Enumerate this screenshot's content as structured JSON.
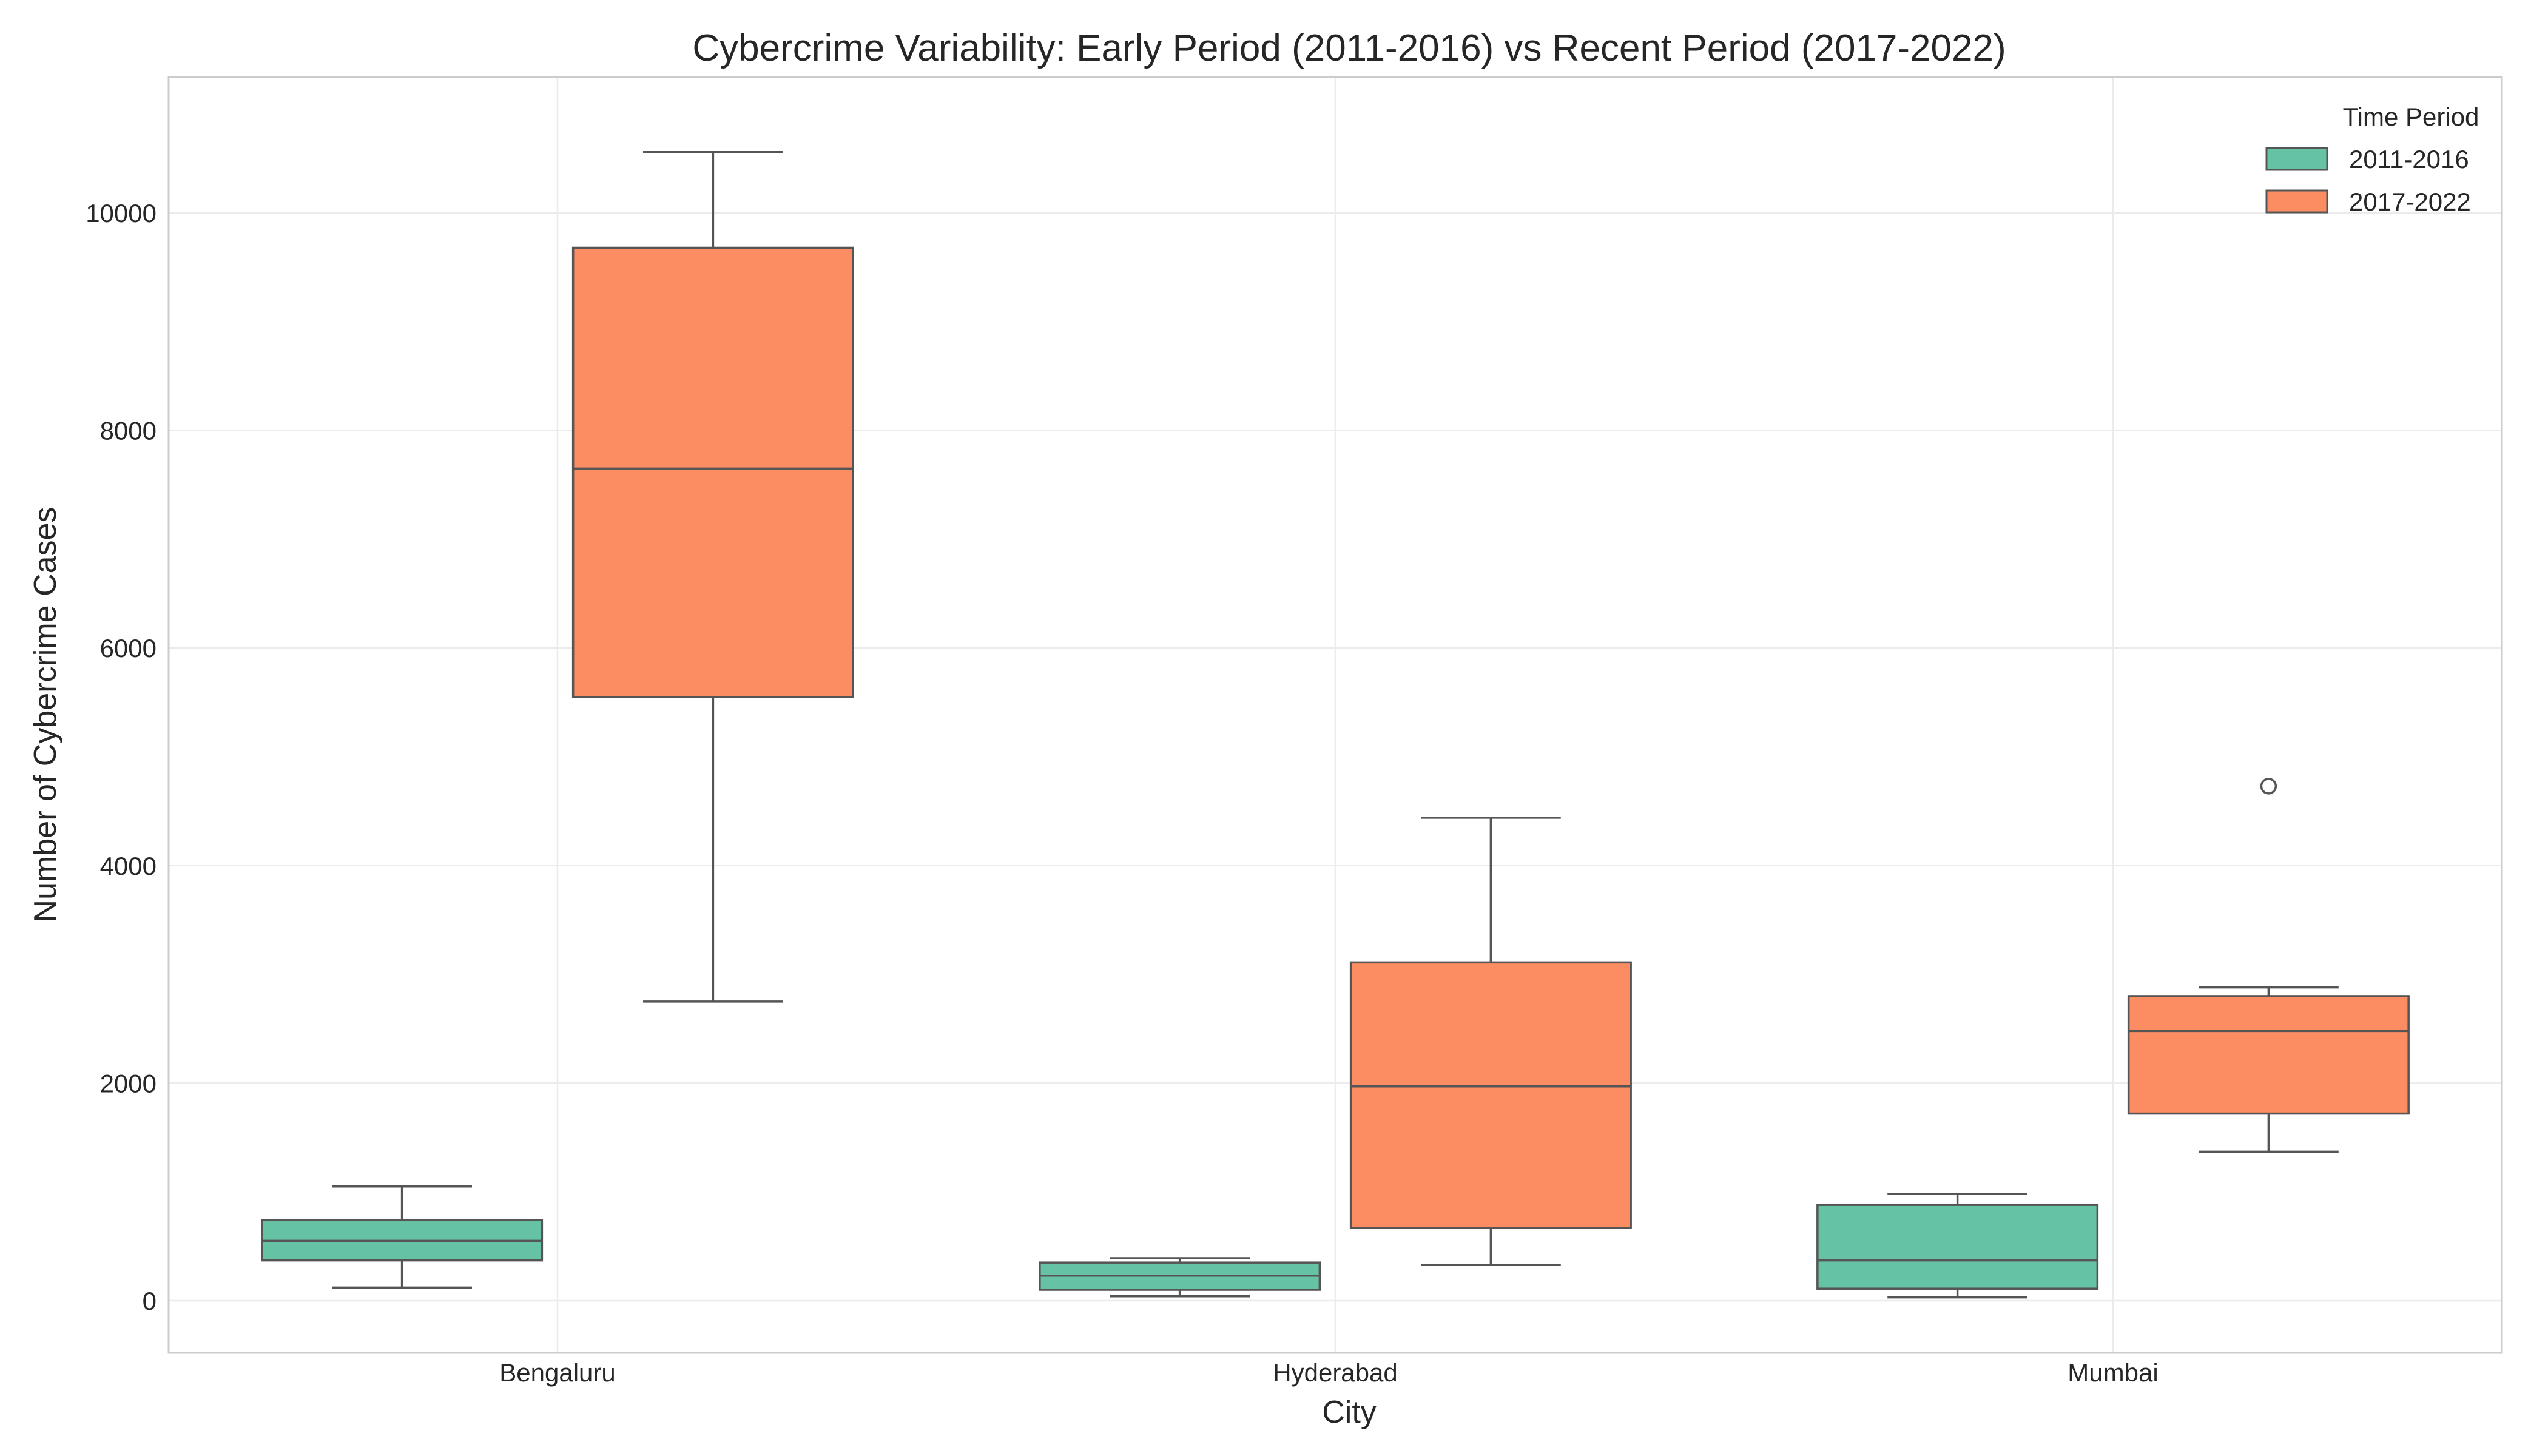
{
  "chart_data": {
    "type": "box",
    "title": "Cybercrime Variability: Early Period (2011-2016) vs Recent Period (2017-2022)",
    "xlabel": "City",
    "ylabel": "Number of Cybercrime Cases",
    "categories": [
      "Bengaluru",
      "Hyderabad",
      "Mumbai"
    ],
    "ylim": [
      -480,
      11250
    ],
    "yticks": [
      0,
      2000,
      4000,
      6000,
      8000,
      10000
    ],
    "grid": true,
    "legend": {
      "title": "Time Period",
      "placement": "top-right"
    },
    "series": [
      {
        "name": "2011-2016",
        "color": "#66c2a5",
        "boxes": [
          {
            "category": "Bengaluru",
            "whisker_low": 120,
            "q1": 370,
            "median": 550,
            "q3": 740,
            "whisker_high": 1050,
            "outliers": []
          },
          {
            "category": "Hyderabad",
            "whisker_low": 40,
            "q1": 100,
            "median": 230,
            "q3": 350,
            "whisker_high": 390,
            "outliers": []
          },
          {
            "category": "Mumbai",
            "whisker_low": 30,
            "q1": 110,
            "median": 370,
            "q3": 880,
            "whisker_high": 980,
            "outliers": []
          }
        ]
      },
      {
        "name": "2017-2022",
        "color": "#fc8d62",
        "boxes": [
          {
            "category": "Bengaluru",
            "whisker_low": 2750,
            "q1": 5550,
            "median": 7650,
            "q3": 9680,
            "whisker_high": 10560,
            "outliers": []
          },
          {
            "category": "Hyderabad",
            "whisker_low": 330,
            "q1": 670,
            "median": 1970,
            "q3": 3110,
            "whisker_high": 4440,
            "outliers": []
          },
          {
            "category": "Mumbai",
            "whisker_low": 1370,
            "q1": 1720,
            "median": 2480,
            "q3": 2800,
            "whisker_high": 2880,
            "outliers": [
              4730
            ]
          }
        ]
      }
    ]
  }
}
